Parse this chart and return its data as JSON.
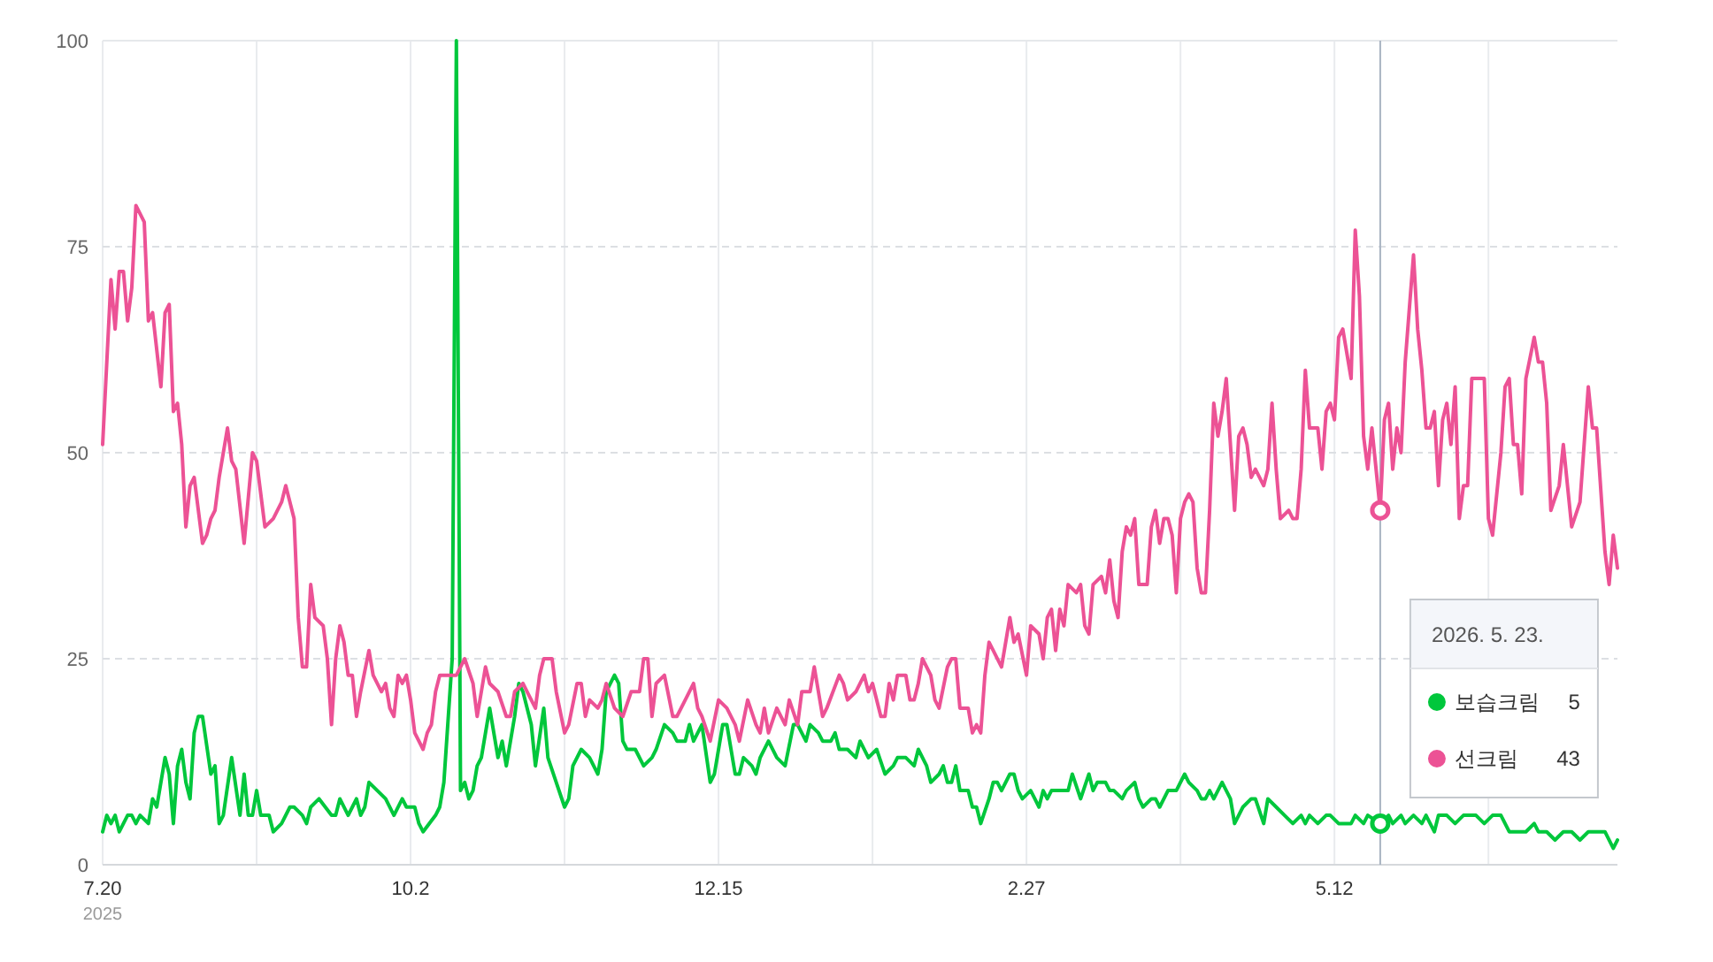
{
  "chart_data": {
    "type": "line",
    "xlim": [
      "2025-07-20",
      "2026-07-19"
    ],
    "ylim": [
      0,
      100
    ],
    "yticks": [
      0,
      25,
      50,
      75,
      100
    ],
    "xticks": [
      {
        "value": "2025-07-20",
        "label": "7.20\n2025"
      },
      {
        "value": "2025-08-26",
        "label": null
      },
      {
        "value": "2025-10-02",
        "label": "10.2"
      },
      {
        "value": "2025-11-08",
        "label": null
      },
      {
        "value": "2025-12-15",
        "label": "12.15"
      },
      {
        "value": "2026-01-21",
        "label": null
      },
      {
        "value": "2026-02-27",
        "label": "2.27"
      },
      {
        "value": "2026-04-05",
        "label": null
      },
      {
        "value": "2026-05-12",
        "label": "5.12"
      },
      {
        "value": "2026-06-18",
        "label": null
      }
    ],
    "grid": true,
    "legend": "right",
    "marker": "none",
    "line_style": "solid",
    "ref_lines": [
      {
        "axis": "x",
        "value": "2026-05-23",
        "label": "2026. 5. 23.",
        "color": "#a9b4c2"
      }
    ],
    "annotations": [
      "5",
      "43"
    ],
    "series": [
      {
        "name": "보습크림",
        "color": "#00c73c",
        "x": [
          "2025-07-20",
          "2025-07-21",
          "2025-07-22",
          "2025-07-23",
          "2025-07-24",
          "2025-07-26",
          "2025-07-27",
          "2025-07-28",
          "2025-07-29",
          "2025-07-31",
          "2025-08-01",
          "2025-08-02",
          "2025-08-04",
          "2025-08-05",
          "2025-08-06",
          "2025-08-07",
          "2025-08-08",
          "2025-08-09",
          "2025-08-10",
          "2025-08-11",
          "2025-08-12",
          "2025-08-13",
          "2025-08-15",
          "2025-08-16",
          "2025-08-17",
          "2025-08-18",
          "2025-08-20",
          "2025-08-22",
          "2025-08-23",
          "2025-08-24",
          "2025-08-25",
          "2025-08-26",
          "2025-08-27",
          "2025-08-29",
          "2025-08-30",
          "2025-09-01",
          "2025-09-03",
          "2025-09-04",
          "2025-09-06",
          "2025-09-07",
          "2025-09-08",
          "2025-09-10",
          "2025-09-13",
          "2025-09-14",
          "2025-09-15",
          "2025-09-17",
          "2025-09-18",
          "2025-09-19",
          "2025-09-20",
          "2025-09-21",
          "2025-09-22",
          "2025-09-24",
          "2025-09-26",
          "2025-09-28",
          "2025-09-30",
          "2025-10-01",
          "2025-10-03",
          "2025-10-04",
          "2025-10-05",
          "2025-10-08",
          "2025-10-09",
          "2025-10-10",
          "2025-10-12",
          "2025-10-13",
          "2025-10-14",
          "2025-10-15",
          "2025-10-16",
          "2025-10-17",
          "2025-10-18",
          "2025-10-19",
          "2025-10-21",
          "2025-10-23",
          "2025-10-24",
          "2025-10-25",
          "2025-10-27",
          "2025-10-28",
          "2025-10-29",
          "2025-10-31",
          "2025-11-01",
          "2025-11-03",
          "2025-11-04",
          "2025-11-06",
          "2025-11-08",
          "2025-11-09",
          "2025-11-10",
          "2025-11-12",
          "2025-11-14",
          "2025-11-16",
          "2025-11-17",
          "2025-11-18",
          "2025-11-20",
          "2025-11-21",
          "2025-11-22",
          "2025-11-23",
          "2025-11-25",
          "2025-11-27",
          "2025-11-29",
          "2025-11-30",
          "2025-12-02",
          "2025-12-04",
          "2025-12-05",
          "2025-12-07",
          "2025-12-08",
          "2025-12-09",
          "2025-12-11",
          "2025-12-13",
          "2025-12-14",
          "2025-12-16",
          "2025-12-17",
          "2025-12-19",
          "2025-12-20",
          "2025-12-21",
          "2025-12-23",
          "2025-12-24",
          "2025-12-25",
          "2025-12-27",
          "2025-12-29",
          "2025-12-31",
          "2026-01-02",
          "2026-01-03",
          "2026-01-05",
          "2026-01-06",
          "2026-01-08",
          "2026-01-09",
          "2026-01-11",
          "2026-01-12",
          "2026-01-13",
          "2026-01-15",
          "2026-01-17",
          "2026-01-18",
          "2026-01-20",
          "2026-01-22",
          "2026-01-24",
          "2026-01-26",
          "2026-01-27",
          "2026-01-29",
          "2026-01-31",
          "2026-02-01",
          "2026-02-03",
          "2026-02-04",
          "2026-02-06",
          "2026-02-07",
          "2026-02-08",
          "2026-02-09",
          "2026-02-10",
          "2026-02-11",
          "2026-02-13",
          "2026-02-14",
          "2026-02-15",
          "2026-02-16",
          "2026-02-18",
          "2026-02-19",
          "2026-02-20",
          "2026-02-21",
          "2026-02-23",
          "2026-02-24",
          "2026-02-25",
          "2026-02-26",
          "2026-02-28",
          "2026-03-01",
          "2026-03-02",
          "2026-03-03",
          "2026-03-04",
          "2026-03-05",
          "2026-03-07",
          "2026-03-09",
          "2026-03-10",
          "2026-03-12",
          "2026-03-14",
          "2026-03-15",
          "2026-03-16",
          "2026-03-18",
          "2026-03-19",
          "2026-03-20",
          "2026-03-22",
          "2026-03-23",
          "2026-03-25",
          "2026-03-26",
          "2026-03-27",
          "2026-03-29",
          "2026-03-30",
          "2026-03-31",
          "2026-04-02",
          "2026-04-04",
          "2026-04-06",
          "2026-04-07",
          "2026-04-09",
          "2026-04-10",
          "2026-04-11",
          "2026-04-12",
          "2026-04-13",
          "2026-04-15",
          "2026-04-17",
          "2026-04-18",
          "2026-04-20",
          "2026-04-22",
          "2026-04-23",
          "2026-04-25",
          "2026-04-26",
          "2026-04-28",
          "2026-04-30",
          "2026-05-02",
          "2026-05-04",
          "2026-05-05",
          "2026-05-06",
          "2026-05-08",
          "2026-05-10",
          "2026-05-11",
          "2026-05-13",
          "2026-05-16",
          "2026-05-17",
          "2026-05-19",
          "2026-05-20",
          "2026-05-23",
          "2026-05-25",
          "2026-05-26",
          "2026-05-28",
          "2026-05-29",
          "2026-05-31",
          "2026-06-02",
          "2026-06-03",
          "2026-06-05",
          "2026-06-06",
          "2026-06-08",
          "2026-06-10",
          "2026-06-12",
          "2026-06-14",
          "2026-06-15",
          "2026-06-17",
          "2026-06-19",
          "2026-06-21",
          "2026-06-23",
          "2026-06-25",
          "2026-06-27",
          "2026-06-29",
          "2026-06-30",
          "2026-07-02",
          "2026-07-04",
          "2026-07-06",
          "2026-07-08",
          "2026-07-10",
          "2026-07-12",
          "2026-07-15",
          "2026-07-16",
          "2026-07-18",
          "2026-07-19"
        ],
        "values": [
          4,
          6,
          5,
          6,
          4,
          6,
          6,
          5,
          6,
          5,
          8,
          7,
          13,
          11,
          5,
          12,
          14,
          10,
          8,
          16,
          18,
          18,
          11,
          12,
          5,
          6,
          13,
          6,
          11,
          6,
          6,
          9,
          6,
          6,
          4,
          5,
          7,
          7,
          6,
          5,
          7,
          8,
          6,
          6,
          8,
          6,
          7,
          8,
          6,
          7,
          10,
          9,
          8,
          6,
          8,
          7,
          7,
          5,
          4,
          6,
          7,
          10,
          25,
          100,
          9,
          10,
          8,
          9,
          12,
          13,
          19,
          13,
          15,
          12,
          18,
          22,
          21,
          17,
          12,
          19,
          13,
          10,
          7,
          8,
          12,
          14,
          13,
          11,
          14,
          21,
          23,
          22,
          15,
          14,
          14,
          12,
          13,
          14,
          17,
          16,
          15,
          15,
          17,
          15,
          17,
          10,
          11,
          17,
          17,
          11,
          11,
          13,
          12,
          11,
          13,
          15,
          13,
          12,
          17,
          17,
          15,
          17,
          16,
          15,
          15,
          16,
          14,
          14,
          13,
          15,
          13,
          14,
          11,
          12,
          13,
          13,
          12,
          14,
          12,
          10,
          11,
          12,
          10,
          10,
          12,
          9,
          9,
          7,
          7,
          5,
          8,
          10,
          10,
          9,
          11,
          11,
          9,
          8,
          9,
          8,
          7,
          9,
          8,
          9,
          9,
          9,
          11,
          8,
          11,
          9,
          10,
          10,
          9,
          9,
          8,
          9,
          10,
          8,
          7,
          8,
          8,
          7,
          9,
          9,
          11,
          10,
          9,
          8,
          8,
          9,
          8,
          10,
          8,
          5,
          7,
          8,
          8,
          5,
          8,
          7,
          6,
          5,
          6,
          5,
          6,
          5,
          6,
          6,
          5,
          5,
          6,
          5,
          6,
          5,
          6,
          5,
          6,
          5,
          6,
          5,
          6,
          4,
          6,
          6,
          5,
          6,
          6,
          6,
          5,
          6,
          6,
          4,
          4,
          4,
          5,
          4,
          4,
          3,
          4,
          4,
          3,
          4,
          4,
          4,
          2,
          3
        ]
      },
      {
        "name": "선크림",
        "color": "#ec5295",
        "x": [
          "2025-07-20",
          "2025-07-22",
          "2025-07-23",
          "2025-07-24",
          "2025-07-25",
          "2025-07-26",
          "2025-07-27",
          "2025-07-28",
          "2025-07-30",
          "2025-07-31",
          "2025-08-01",
          "2025-08-03",
          "2025-08-04",
          "2025-08-05",
          "2025-08-06",
          "2025-08-07",
          "2025-08-08",
          "2025-08-09",
          "2025-08-10",
          "2025-08-11",
          "2025-08-13",
          "2025-08-14",
          "2025-08-15",
          "2025-08-16",
          "2025-08-17",
          "2025-08-19",
          "2025-08-20",
          "2025-08-21",
          "2025-08-23",
          "2025-08-25",
          "2025-08-26",
          "2025-08-28",
          "2025-08-30",
          "2025-09-01",
          "2025-09-02",
          "2025-09-04",
          "2025-09-05",
          "2025-09-06",
          "2025-09-07",
          "2025-09-08",
          "2025-09-09",
          "2025-09-11",
          "2025-09-12",
          "2025-09-13",
          "2025-09-14",
          "2025-09-15",
          "2025-09-16",
          "2025-09-17",
          "2025-09-18",
          "2025-09-19",
          "2025-09-20",
          "2025-09-22",
          "2025-09-23",
          "2025-09-25",
          "2025-09-26",
          "2025-09-27",
          "2025-09-28",
          "2025-09-29",
          "2025-09-30",
          "2025-10-01",
          "2025-10-02",
          "2025-10-03",
          "2025-10-05",
          "2025-10-06",
          "2025-10-07",
          "2025-10-08",
          "2025-10-09",
          "2025-10-10",
          "2025-10-13",
          "2025-10-14",
          "2025-10-15",
          "2025-10-17",
          "2025-10-18",
          "2025-10-20",
          "2025-10-21",
          "2025-10-23",
          "2025-10-25",
          "2025-10-26",
          "2025-10-27",
          "2025-10-29",
          "2025-10-30",
          "2025-11-01",
          "2025-11-02",
          "2025-11-03",
          "2025-11-05",
          "2025-11-06",
          "2025-11-08",
          "2025-11-09",
          "2025-11-11",
          "2025-11-12",
          "2025-11-13",
          "2025-11-14",
          "2025-11-16",
          "2025-11-17",
          "2025-11-18",
          "2025-11-20",
          "2025-11-22",
          "2025-11-24",
          "2025-11-26",
          "2025-11-27",
          "2025-11-28",
          "2025-11-29",
          "2025-11-30",
          "2025-12-02",
          "2025-12-04",
          "2025-12-05",
          "2025-12-07",
          "2025-12-09",
          "2025-12-10",
          "2025-12-11",
          "2025-12-13",
          "2025-12-15",
          "2025-12-17",
          "2025-12-19",
          "2025-12-20",
          "2025-12-22",
          "2025-12-24",
          "2025-12-25",
          "2025-12-26",
          "2025-12-27",
          "2025-12-29",
          "2025-12-31",
          "2026-01-01",
          "2026-01-03",
          "2026-01-04",
          "2026-01-06",
          "2026-01-07",
          "2026-01-09",
          "2026-01-10",
          "2026-01-13",
          "2026-01-14",
          "2026-01-15",
          "2026-01-17",
          "2026-01-19",
          "2026-01-20",
          "2026-01-21",
          "2026-01-23",
          "2026-01-24",
          "2026-01-25",
          "2026-01-26",
          "2026-01-27",
          "2026-01-29",
          "2026-01-30",
          "2026-01-31",
          "2026-02-01",
          "2026-02-02",
          "2026-02-04",
          "2026-02-05",
          "2026-02-06",
          "2026-02-08",
          "2026-02-09",
          "2026-02-10",
          "2026-02-11",
          "2026-02-13",
          "2026-02-14",
          "2026-02-15",
          "2026-02-16",
          "2026-02-17",
          "2026-02-18",
          "2026-02-19",
          "2026-02-21",
          "2026-02-22",
          "2026-02-23",
          "2026-02-24",
          "2026-02-25",
          "2026-02-27",
          "2026-02-28",
          "2026-03-02",
          "2026-03-03",
          "2026-03-04",
          "2026-03-05",
          "2026-03-06",
          "2026-03-07",
          "2026-03-08",
          "2026-03-09",
          "2026-03-11",
          "2026-03-12",
          "2026-03-13",
          "2026-03-14",
          "2026-03-15",
          "2026-03-17",
          "2026-03-18",
          "2026-03-19",
          "2026-03-20",
          "2026-03-21",
          "2026-03-22",
          "2026-03-23",
          "2026-03-24",
          "2026-03-25",
          "2026-03-26",
          "2026-03-28",
          "2026-03-29",
          "2026-03-30",
          "2026-03-31",
          "2026-04-01",
          "2026-04-02",
          "2026-04-03",
          "2026-04-04",
          "2026-04-05",
          "2026-04-06",
          "2026-04-07",
          "2026-04-08",
          "2026-04-09",
          "2026-04-10",
          "2026-04-11",
          "2026-04-12",
          "2026-04-13",
          "2026-04-14",
          "2026-04-15",
          "2026-04-16",
          "2026-04-17",
          "2026-04-18",
          "2026-04-19",
          "2026-04-20",
          "2026-04-21",
          "2026-04-22",
          "2026-04-23",
          "2026-04-25",
          "2026-04-26",
          "2026-04-27",
          "2026-04-28",
          "2026-04-29",
          "2026-05-01",
          "2026-05-02",
          "2026-05-03",
          "2026-05-04",
          "2026-05-05",
          "2026-05-06",
          "2026-05-08",
          "2026-05-09",
          "2026-05-10",
          "2026-05-11",
          "2026-05-12",
          "2026-05-13",
          "2026-05-14",
          "2026-05-15",
          "2026-05-16",
          "2026-05-17",
          "2026-05-18",
          "2026-05-19",
          "2026-05-20",
          "2026-05-21",
          "2026-05-23",
          "2026-05-24",
          "2026-05-25",
          "2026-05-26",
          "2026-05-27",
          "2026-05-28",
          "2026-05-29",
          "2026-05-31",
          "2026-06-01",
          "2026-06-02",
          "2026-06-03",
          "2026-06-04",
          "2026-06-05",
          "2026-06-06",
          "2026-06-07",
          "2026-06-08",
          "2026-06-09",
          "2026-06-10",
          "2026-06-11",
          "2026-06-12",
          "2026-06-13",
          "2026-06-14",
          "2026-06-16",
          "2026-06-17",
          "2026-06-18",
          "2026-06-19",
          "2026-06-21",
          "2026-06-22",
          "2026-06-23",
          "2026-06-24",
          "2026-06-25",
          "2026-06-26",
          "2026-06-27",
          "2026-06-29",
          "2026-06-30",
          "2026-07-01",
          "2026-07-02",
          "2026-07-03",
          "2026-07-05",
          "2026-07-06",
          "2026-07-08",
          "2026-07-10",
          "2026-07-12",
          "2026-07-13",
          "2026-07-14",
          "2026-07-16",
          "2026-07-17",
          "2026-07-18",
          "2026-07-19"
        ],
        "values": [
          51,
          71,
          65,
          72,
          72,
          66,
          70,
          80,
          78,
          66,
          67,
          58,
          67,
          68,
          55,
          56,
          51,
          41,
          46,
          47,
          39,
          40,
          42,
          43,
          47,
          53,
          49,
          48,
          39,
          50,
          49,
          41,
          42,
          44,
          46,
          42,
          30,
          24,
          24,
          34,
          30,
          29,
          25,
          17,
          25,
          29,
          27,
          23,
          23,
          18,
          21,
          26,
          23,
          21,
          22,
          19,
          18,
          23,
          22,
          23,
          20,
          16,
          14,
          16,
          17,
          21,
          23,
          23,
          23,
          24,
          25,
          22,
          18,
          24,
          22,
          21,
          18,
          18,
          21,
          22,
          21,
          19,
          23,
          25,
          25,
          21,
          16,
          17,
          22,
          22,
          18,
          20,
          19,
          20,
          22,
          19,
          18,
          21,
          21,
          25,
          25,
          18,
          22,
          23,
          18,
          18,
          20,
          22,
          19,
          18,
          15,
          20,
          19,
          17,
          15,
          20,
          17,
          16,
          19,
          16,
          19,
          17,
          20,
          17,
          21,
          21,
          24,
          18,
          19,
          23,
          22,
          20,
          21,
          23,
          21,
          22,
          18,
          18,
          22,
          20,
          23,
          23,
          20,
          20,
          22,
          25,
          23,
          20,
          19,
          24,
          25,
          25,
          19,
          19,
          16,
          17,
          16,
          23,
          27,
          26,
          24,
          27,
          30,
          27,
          28,
          23,
          29,
          28,
          25,
          30,
          31,
          26,
          31,
          29,
          34,
          33,
          34,
          29,
          28,
          34,
          35,
          33,
          37,
          32,
          30,
          38,
          41,
          40,
          42,
          34,
          34,
          41,
          43,
          39,
          42,
          42,
          40,
          33,
          42,
          44,
          45,
          44,
          36,
          33,
          33,
          43,
          56,
          52,
          55,
          59,
          51,
          43,
          52,
          53,
          51,
          47,
          48,
          46,
          48,
          56,
          48,
          42,
          43,
          42,
          42,
          48,
          60,
          53,
          53,
          48,
          55,
          56,
          54,
          64,
          65,
          62,
          59,
          77,
          69,
          52,
          48,
          53,
          43,
          54,
          56,
          48,
          53,
          50,
          61,
          74,
          65,
          60,
          53,
          53,
          55,
          46,
          54,
          56,
          51,
          58,
          42,
          46,
          46,
          59,
          59,
          59,
          42,
          40,
          50,
          58,
          59,
          51,
          51,
          45,
          59,
          64,
          61,
          61,
          56,
          43,
          46,
          51,
          41,
          44,
          58,
          53,
          53,
          38,
          34,
          40,
          36
        ]
      }
    ]
  }
}
